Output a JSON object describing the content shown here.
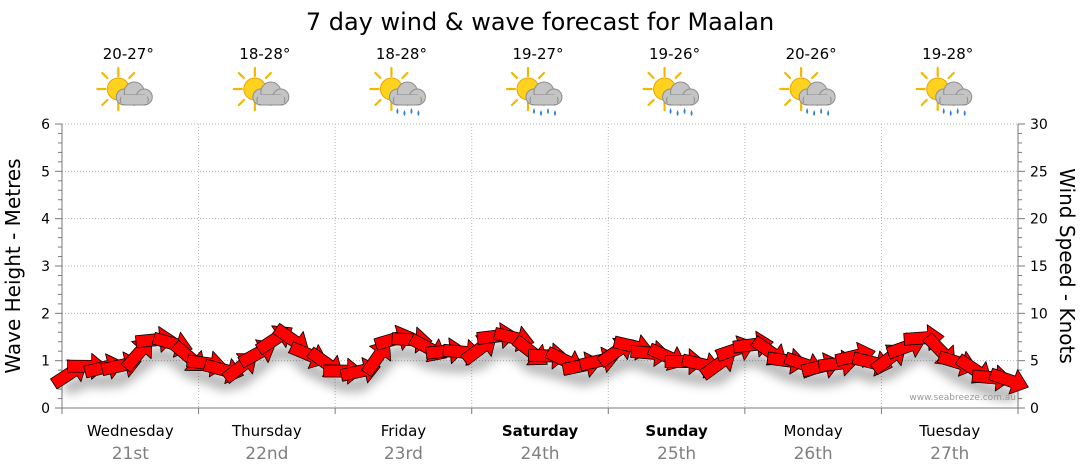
{
  "chart_data": {
    "type": "line",
    "title": "7 day wind & wave forecast for Maalan",
    "ylabel_left": "Wave Height - Metres",
    "ylabel_right": "Wind Speed - Knots",
    "ylim_left": [
      0,
      6
    ],
    "ylim_right": [
      0,
      30
    ],
    "yticks_left": [
      "0",
      "1",
      "2",
      "3",
      "4",
      "5",
      "6"
    ],
    "yticks_right": [
      "0",
      "5",
      "10",
      "15",
      "20",
      "25",
      "30"
    ],
    "grid": true,
    "credit": "www.seabreeze.com.au",
    "days": [
      {
        "name": "Wednesday",
        "date": "21st",
        "temp": "20-27°",
        "weather": "partly-cloudy-icon",
        "bold": false
      },
      {
        "name": "Thursday",
        "date": "22nd",
        "temp": "18-28°",
        "weather": "partly-cloudy-icon",
        "bold": false
      },
      {
        "name": "Friday",
        "date": "23rd",
        "temp": "18-28°",
        "weather": "sun-showers-icon",
        "bold": false
      },
      {
        "name": "Saturday",
        "date": "24th",
        "temp": "19-27°",
        "weather": "sun-showers-icon",
        "bold": true
      },
      {
        "name": "Sunday",
        "date": "25th",
        "temp": "19-26°",
        "weather": "sun-showers-icon",
        "bold": true
      },
      {
        "name": "Monday",
        "date": "26th",
        "temp": "20-26°",
        "weather": "sun-showers-icon",
        "bold": false
      },
      {
        "name": "Tuesday",
        "date": "27th",
        "temp": "19-28°",
        "weather": "sun-showers-icon",
        "bold": false
      }
    ],
    "series": [
      {
        "kind": "wind",
        "unit": "knots",
        "color": "#ff0000",
        "points_per_day": 8,
        "values": [
          3.7,
          4.4,
          4.3,
          4.5,
          5.8,
          7.2,
          6.8,
          5.3,
          4.7,
          4.0,
          4.4,
          5.8,
          7.3,
          7.2,
          5.6,
          4.7,
          3.9,
          3.9,
          5.4,
          7.3,
          7.2,
          6.3,
          6.0,
          5.9,
          6.3,
          7.6,
          7.4,
          5.9,
          5.5,
          5.0,
          4.5,
          5.0,
          6.0,
          6.5,
          5.8,
          5.4,
          4.9,
          4.6,
          4.7,
          6.2,
          6.7,
          5.9,
          5.0,
          4.6,
          4.4,
          4.7,
          5.5,
          4.8,
          5.3,
          6.5,
          7.4,
          6.0,
          4.8,
          4.0,
          3.2,
          2.9
        ]
      }
    ]
  }
}
